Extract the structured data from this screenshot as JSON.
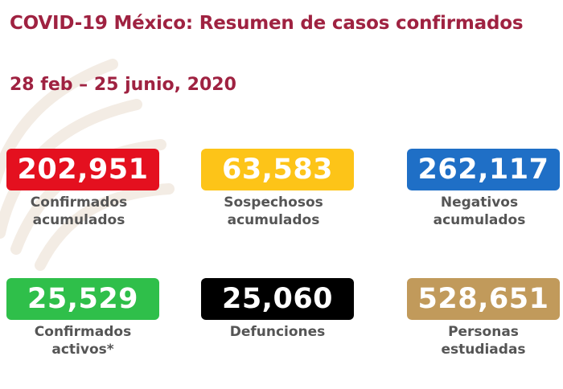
{
  "header": {
    "title": "COVID-19 México: Resumen de casos confirmados",
    "date_range": "28 feb – 25 junio, 2020"
  },
  "stats": [
    {
      "value": "202,951",
      "label_line1": "Confirmados",
      "label_line2": "acumulados",
      "color": "#e4101f"
    },
    {
      "value": "63,583",
      "label_line1": "Sospechosos",
      "label_line2": "acumulados",
      "color": "#fdc418"
    },
    {
      "value": "262,117",
      "label_line1": "Negativos",
      "label_line2": "acumulados",
      "color": "#1f6fc6"
    },
    {
      "value": "25,529",
      "label_line1": "Confirmados",
      "label_line2": "activos*",
      "color": "#2fbf4a"
    },
    {
      "value": "25,060",
      "label_line1": "Defunciones",
      "label_line2": "",
      "color": "#000000"
    },
    {
      "value": "528,651",
      "label_line1": "Personas",
      "label_line2": "estudiadas",
      "color": "#c19a5b"
    }
  ],
  "colors": {
    "title": "#9f2241",
    "label_text": "#555555"
  },
  "decoration": {
    "watermark": "eagle-emblem-watermark"
  }
}
